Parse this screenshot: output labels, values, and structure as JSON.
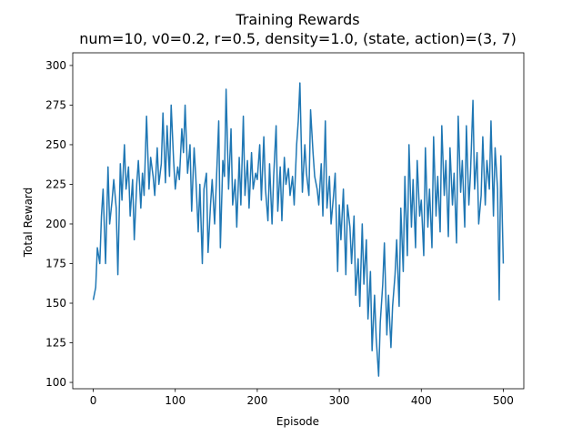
{
  "chart_data": {
    "type": "line",
    "title": "Training Rewards",
    "subtitle": "num=10, v0=0.2, r=0.5, density=1.0, (state, action)=(3, 7)",
    "xlabel": "Episode",
    "ylabel": "Total Reward",
    "xlim": [
      -25,
      525
    ],
    "ylim": [
      96,
      308
    ],
    "x_ticks": [
      0,
      100,
      200,
      300,
      400,
      500
    ],
    "y_ticks": [
      100,
      125,
      150,
      175,
      200,
      225,
      250,
      275,
      300
    ],
    "grid": false,
    "legend": "none",
    "series": [
      {
        "color": "#1f77b4",
        "points": [
          [
            0,
            152
          ],
          [
            3,
            160
          ],
          [
            5,
            185
          ],
          [
            8,
            175
          ],
          [
            10,
            205
          ],
          [
            12,
            222
          ],
          [
            15,
            175
          ],
          [
            18,
            236
          ],
          [
            20,
            200
          ],
          [
            23,
            215
          ],
          [
            25,
            228
          ],
          [
            28,
            210
          ],
          [
            30,
            168
          ],
          [
            33,
            238
          ],
          [
            35,
            215
          ],
          [
            38,
            250
          ],
          [
            40,
            222
          ],
          [
            43,
            236
          ],
          [
            45,
            205
          ],
          [
            48,
            228
          ],
          [
            50,
            190
          ],
          [
            53,
            225
          ],
          [
            55,
            240
          ],
          [
            58,
            210
          ],
          [
            60,
            232
          ],
          [
            62,
            218
          ],
          [
            65,
            268
          ],
          [
            68,
            222
          ],
          [
            70,
            242
          ],
          [
            73,
            230
          ],
          [
            75,
            218
          ],
          [
            78,
            248
          ],
          [
            80,
            225
          ],
          [
            83,
            238
          ],
          [
            85,
            270
          ],
          [
            88,
            226
          ],
          [
            90,
            262
          ],
          [
            93,
            230
          ],
          [
            95,
            275
          ],
          [
            98,
            240
          ],
          [
            100,
            222
          ],
          [
            103,
            236
          ],
          [
            105,
            228
          ],
          [
            108,
            260
          ],
          [
            110,
            245
          ],
          [
            112,
            275
          ],
          [
            115,
            232
          ],
          [
            118,
            250
          ],
          [
            120,
            208
          ],
          [
            123,
            248
          ],
          [
            125,
            230
          ],
          [
            128,
            195
          ],
          [
            130,
            225
          ],
          [
            133,
            175
          ],
          [
            135,
            222
          ],
          [
            138,
            232
          ],
          [
            140,
            182
          ],
          [
            143,
            212
          ],
          [
            145,
            228
          ],
          [
            148,
            200
          ],
          [
            150,
            225
          ],
          [
            153,
            265
          ],
          [
            155,
            185
          ],
          [
            158,
            240
          ],
          [
            160,
            230
          ],
          [
            162,
            285
          ],
          [
            165,
            222
          ],
          [
            168,
            260
          ],
          [
            170,
            212
          ],
          [
            173,
            228
          ],
          [
            175,
            198
          ],
          [
            178,
            242
          ],
          [
            180,
            212
          ],
          [
            183,
            268
          ],
          [
            185,
            218
          ],
          [
            188,
            240
          ],
          [
            190,
            210
          ],
          [
            193,
            245
          ],
          [
            195,
            222
          ],
          [
            198,
            232
          ],
          [
            200,
            228
          ],
          [
            203,
            250
          ],
          [
            205,
            215
          ],
          [
            208,
            255
          ],
          [
            210,
            222
          ],
          [
            213,
            202
          ],
          [
            215,
            238
          ],
          [
            218,
            200
          ],
          [
            220,
            230
          ],
          [
            223,
            262
          ],
          [
            225,
            208
          ],
          [
            228,
            236
          ],
          [
            230,
            202
          ],
          [
            233,
            242
          ],
          [
            235,
            225
          ],
          [
            238,
            235
          ],
          [
            240,
            218
          ],
          [
            243,
            230
          ],
          [
            245,
            212
          ],
          [
            248,
            250
          ],
          [
            250,
            265
          ],
          [
            252,
            289
          ],
          [
            255,
            220
          ],
          [
            258,
            250
          ],
          [
            260,
            232
          ],
          [
            263,
            218
          ],
          [
            265,
            272
          ],
          [
            268,
            245
          ],
          [
            270,
            230
          ],
          [
            273,
            222
          ],
          [
            275,
            212
          ],
          [
            278,
            238
          ],
          [
            280,
            205
          ],
          [
            283,
            265
          ],
          [
            285,
            210
          ],
          [
            288,
            230
          ],
          [
            290,
            200
          ],
          [
            293,
            218
          ],
          [
            295,
            232
          ],
          [
            298,
            170
          ],
          [
            300,
            212
          ],
          [
            302,
            190
          ],
          [
            305,
            222
          ],
          [
            308,
            168
          ],
          [
            310,
            212
          ],
          [
            313,
            198
          ],
          [
            315,
            175
          ],
          [
            318,
            205
          ],
          [
            320,
            155
          ],
          [
            323,
            178
          ],
          [
            325,
            148
          ],
          [
            328,
            200
          ],
          [
            330,
            162
          ],
          [
            333,
            190
          ],
          [
            335,
            140
          ],
          [
            338,
            170
          ],
          [
            340,
            120
          ],
          [
            343,
            155
          ],
          [
            345,
            128
          ],
          [
            348,
            104
          ],
          [
            350,
            138
          ],
          [
            353,
            162
          ],
          [
            355,
            188
          ],
          [
            358,
            130
          ],
          [
            360,
            155
          ],
          [
            363,
            122
          ],
          [
            365,
            148
          ],
          [
            368,
            168
          ],
          [
            370,
            190
          ],
          [
            373,
            148
          ],
          [
            375,
            210
          ],
          [
            378,
            170
          ],
          [
            380,
            230
          ],
          [
            383,
            180
          ],
          [
            385,
            250
          ],
          [
            388,
            198
          ],
          [
            390,
            228
          ],
          [
            393,
            185
          ],
          [
            395,
            240
          ],
          [
            398,
            205
          ],
          [
            400,
            215
          ],
          [
            403,
            180
          ],
          [
            405,
            248
          ],
          [
            408,
            198
          ],
          [
            410,
            222
          ],
          [
            413,
            185
          ],
          [
            415,
            255
          ],
          [
            418,
            205
          ],
          [
            420,
            230
          ],
          [
            423,
            195
          ],
          [
            425,
            262
          ],
          [
            428,
            218
          ],
          [
            430,
            240
          ],
          [
            433,
            192
          ],
          [
            435,
            248
          ],
          [
            438,
            212
          ],
          [
            440,
            232
          ],
          [
            443,
            188
          ],
          [
            445,
            268
          ],
          [
            448,
            220
          ],
          [
            450,
            240
          ],
          [
            453,
            198
          ],
          [
            455,
            262
          ],
          [
            458,
            212
          ],
          [
            460,
            232
          ],
          [
            463,
            278
          ],
          [
            465,
            222
          ],
          [
            468,
            245
          ],
          [
            470,
            200
          ],
          [
            473,
            218
          ],
          [
            475,
            255
          ],
          [
            478,
            212
          ],
          [
            480,
            240
          ],
          [
            483,
            222
          ],
          [
            485,
            265
          ],
          [
            488,
            205
          ],
          [
            490,
            248
          ],
          [
            493,
            222
          ],
          [
            495,
            152
          ],
          [
            497,
            243
          ],
          [
            500,
            175
          ]
        ]
      }
    ]
  }
}
